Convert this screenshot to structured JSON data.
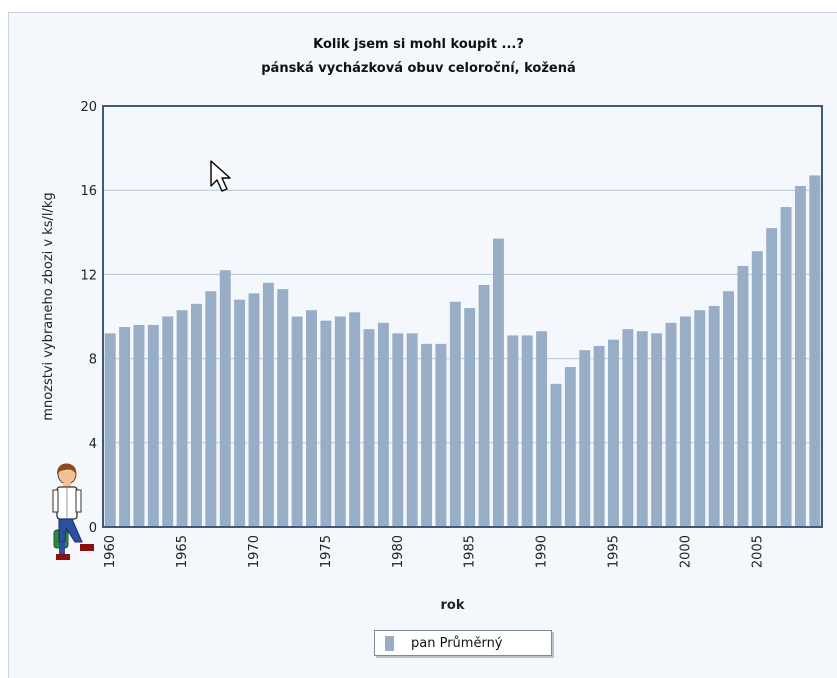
{
  "chart_data": {
    "type": "bar",
    "title": "Kolik jsem si  mohl koupit ...?",
    "subtitle": "pánská vycházková obuv celoroční, kožená",
    "xlabel": "rok",
    "ylabel": "mnozstvi vybraneho zbozi v ks/l/kg",
    "ylim": [
      0,
      20
    ],
    "yticks": [
      0,
      4,
      8,
      12,
      16,
      20
    ],
    "xtick_labels": [
      "1960",
      "1965",
      "1970",
      "1975",
      "1980",
      "1985",
      "1990",
      "1995",
      "2000",
      "2005"
    ],
    "grid": "horizontal",
    "legend_position": "bottom-center",
    "bar_color": "#98aec7",
    "categories": [
      "1960",
      "1961",
      "1962",
      "1963",
      "1964",
      "1965",
      "1966",
      "1967",
      "1968",
      "1969",
      "1970",
      "1971",
      "1972",
      "1973",
      "1974",
      "1975",
      "1976",
      "1977",
      "1978",
      "1979",
      "1980",
      "1981",
      "1982",
      "1983",
      "1984",
      "1985",
      "1986",
      "1987",
      "1988",
      "1989",
      "1990",
      "1991",
      "1992",
      "1993",
      "1994",
      "1995",
      "1996",
      "1997",
      "1998",
      "1999",
      "2000",
      "2001",
      "2002",
      "2003",
      "2004",
      "2005",
      "2006",
      "2007",
      "2008",
      "2009"
    ],
    "series": [
      {
        "name": "pan Průměrný",
        "values": [
          9.2,
          9.5,
          9.6,
          9.6,
          10.0,
          10.3,
          10.6,
          11.2,
          12.2,
          10.8,
          11.1,
          11.6,
          11.3,
          10.0,
          10.3,
          9.8,
          10.0,
          10.2,
          9.4,
          9.7,
          9.2,
          9.2,
          8.7,
          8.7,
          10.7,
          10.4,
          11.5,
          13.7,
          9.1,
          9.1,
          9.3,
          6.8,
          7.6,
          8.4,
          8.6,
          8.9,
          9.4,
          9.3,
          9.2,
          9.7,
          10.0,
          10.3,
          10.5,
          11.2,
          12.4,
          13.1,
          14.2,
          15.2,
          16.2,
          16.7
        ]
      }
    ]
  }
}
